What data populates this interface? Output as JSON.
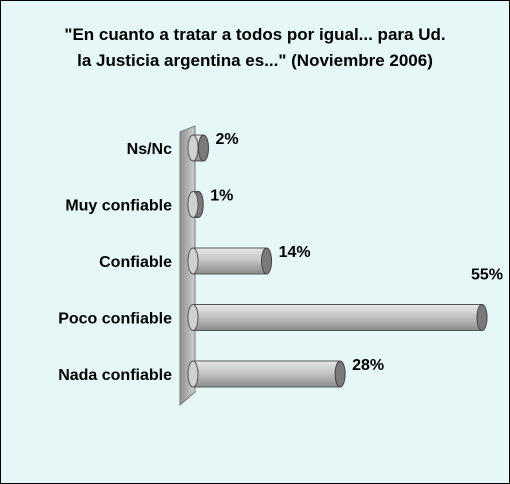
{
  "chart_data": {
    "type": "bar",
    "orientation": "horizontal",
    "title": "\"En cuanto a tratar a todos por igual... para Ud. la Justicia argentina es...\"  (Noviembre 2006)",
    "categories": [
      "Ns/Nc",
      "Muy confiable",
      "Confiable",
      "Poco confiable",
      "Nada confiable"
    ],
    "values": [
      2,
      1,
      14,
      55,
      28
    ],
    "value_labels": [
      "2%",
      "1%",
      "14%",
      "55%",
      "28%"
    ],
    "color": "#c0c0c0"
  }
}
